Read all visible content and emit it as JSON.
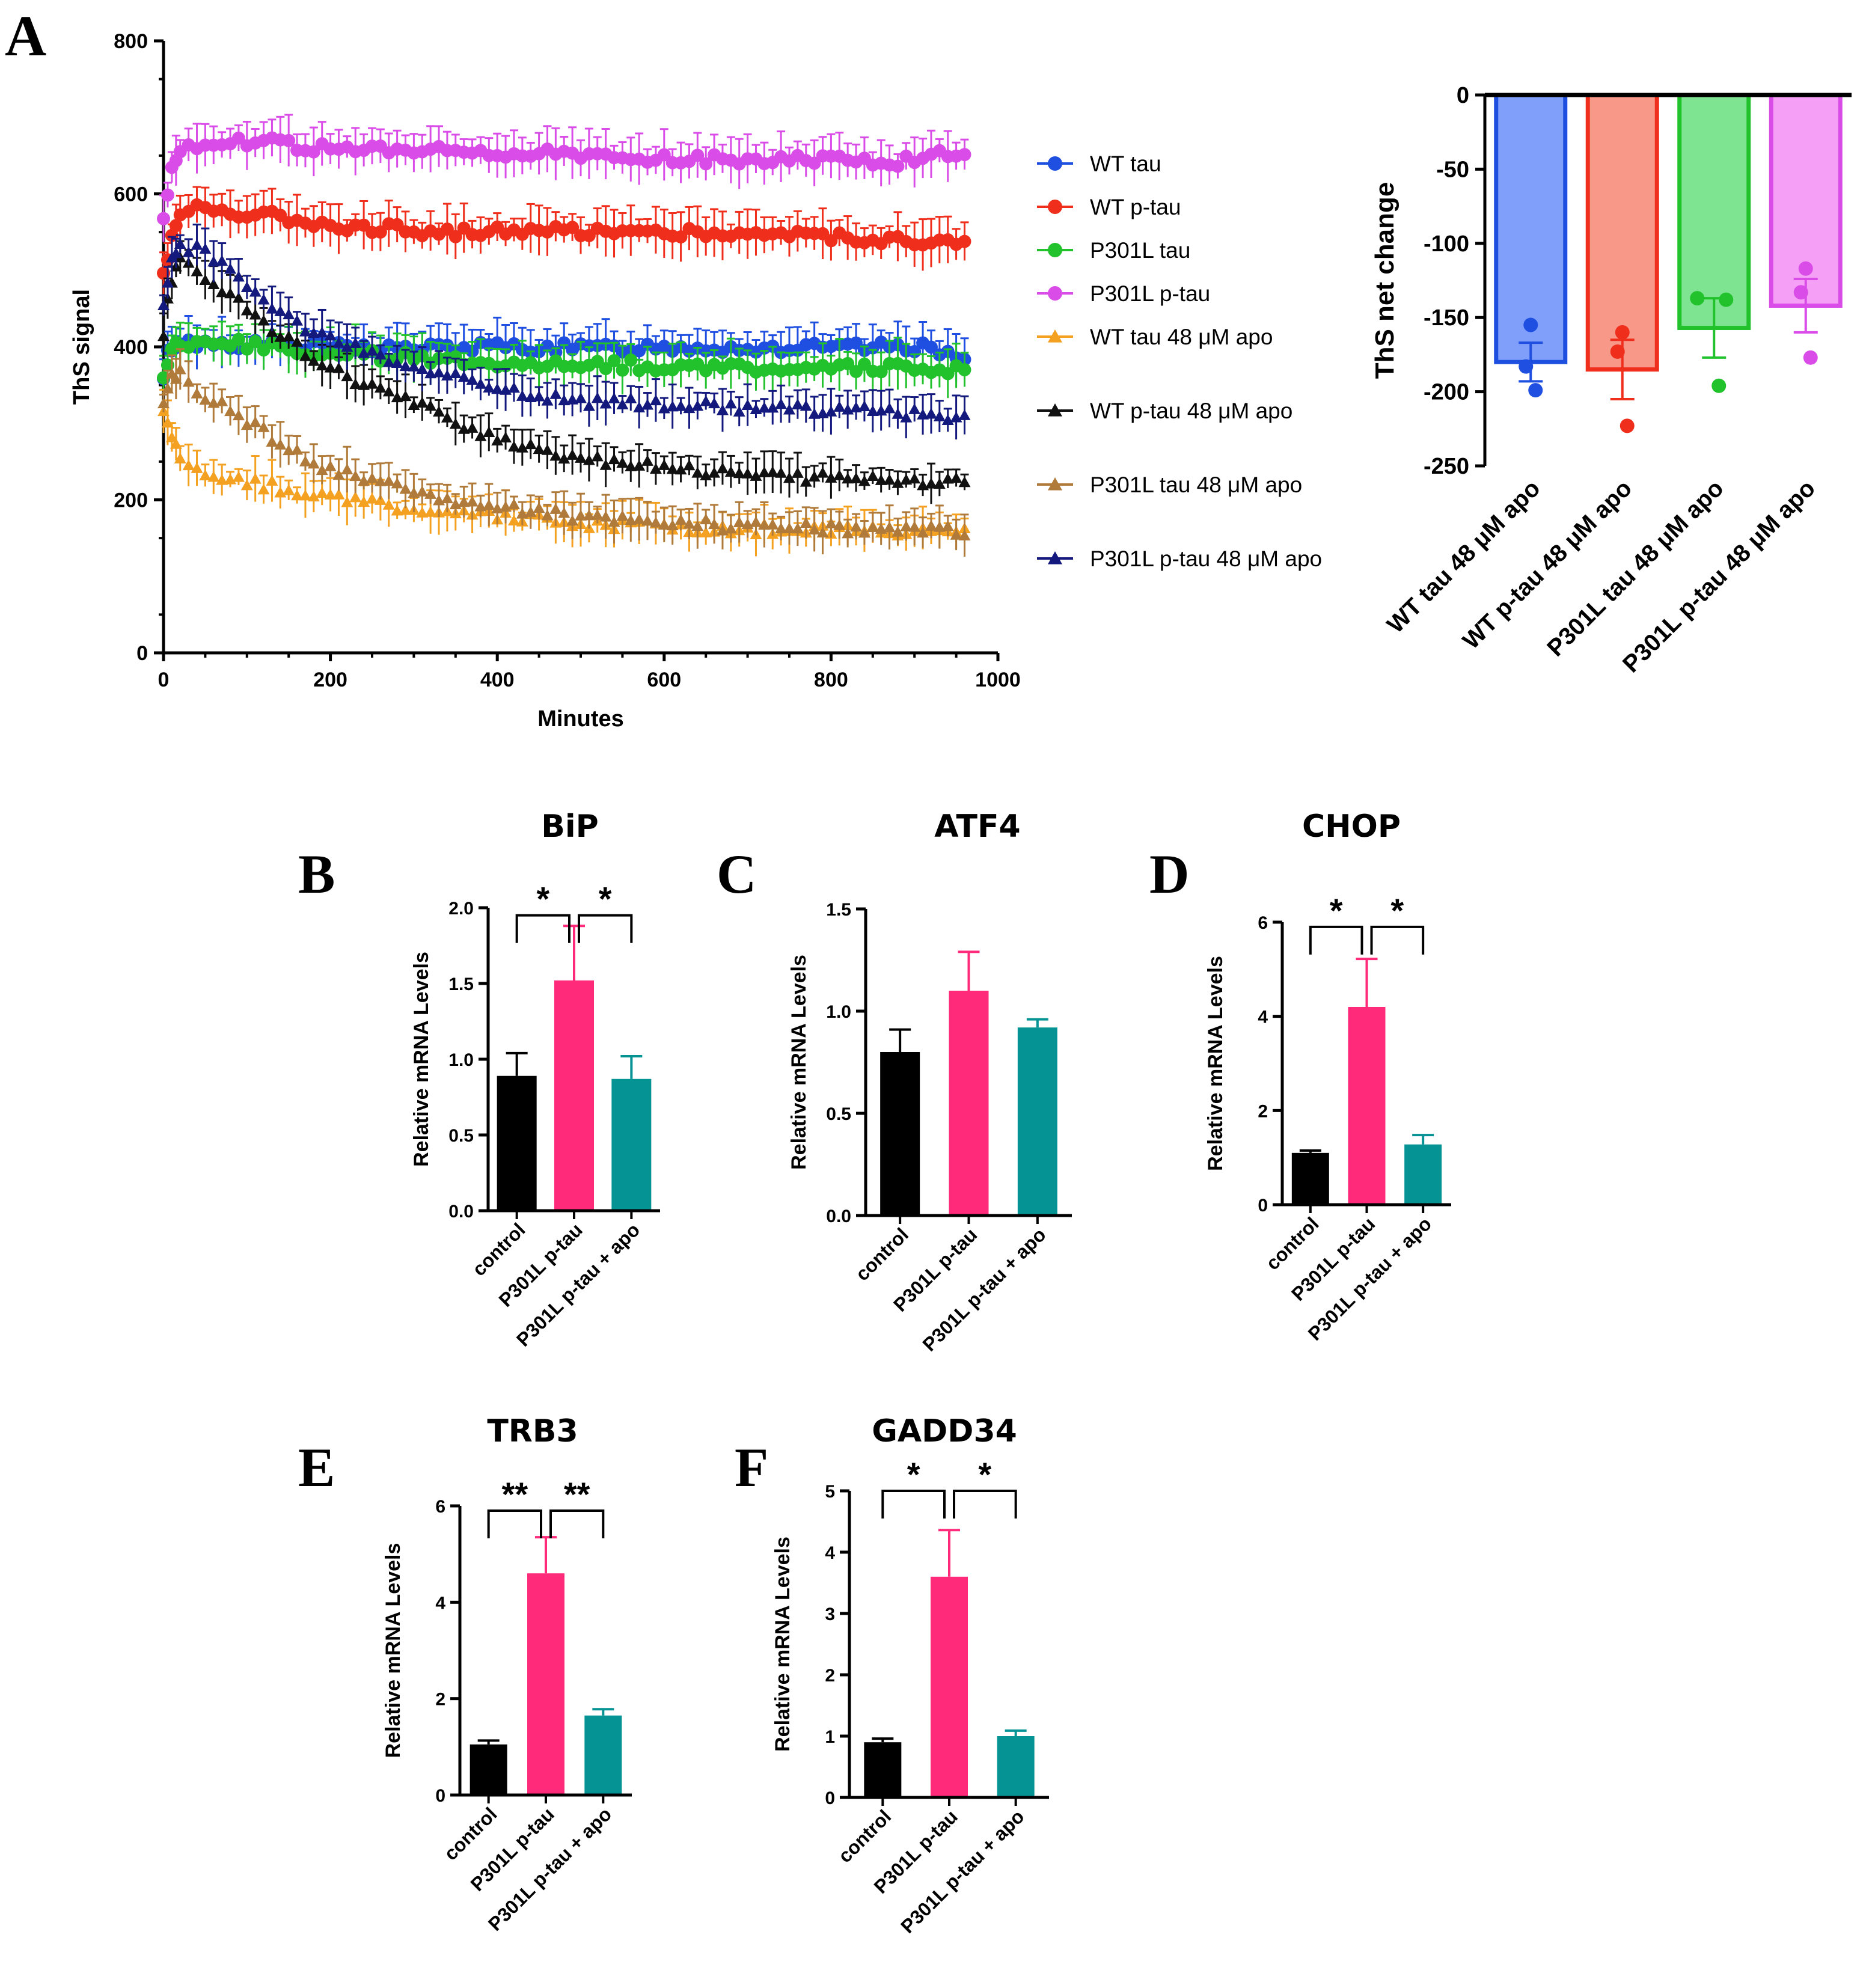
{
  "panels": [
    {
      "id": "A-time",
      "label": "A",
      "chart_data": {
        "type": "line",
        "title": "",
        "xlabel": "Minutes",
        "ylabel": "ThS signal",
        "xlim": [
          0,
          1000
        ],
        "ylim": [
          0,
          800
        ],
        "xticks": [
          0,
          200,
          400,
          600,
          800,
          1000
        ],
        "yticks": [
          0,
          200,
          400,
          600,
          800
        ],
        "legend_position": "right",
        "series": [
          {
            "name": "WT tau",
            "color": "#1f4fe0",
            "marker": "circle",
            "points": [
              [
                0,
                355
              ],
              [
                5,
                390
              ],
              [
                10,
                400
              ],
              [
                20,
                405
              ],
              [
                40,
                405
              ],
              [
                80,
                404
              ],
              [
                120,
                402
              ],
              [
                160,
                400
              ],
              [
                200,
                400
              ],
              [
                300,
                398
              ],
              [
                400,
                400
              ],
              [
                500,
                398
              ],
              [
                600,
                400
              ],
              [
                700,
                398
              ],
              [
                800,
                398
              ],
              [
                900,
                400
              ],
              [
                960,
                390
              ]
            ]
          },
          {
            "name": "WT p-tau",
            "color": "#ef2e1c",
            "marker": "circle",
            "points": [
              [
                0,
                495
              ],
              [
                5,
                520
              ],
              [
                10,
                540
              ],
              [
                20,
                575
              ],
              [
                40,
                582
              ],
              [
                80,
                578
              ],
              [
                120,
                572
              ],
              [
                160,
                568
              ],
              [
                200,
                560
              ],
              [
                300,
                552
              ],
              [
                400,
                550
              ],
              [
                500,
                552
              ],
              [
                600,
                550
              ],
              [
                700,
                548
              ],
              [
                800,
                545
              ],
              [
                900,
                538
              ],
              [
                960,
                535
              ]
            ]
          },
          {
            "name": "P301L tau",
            "color": "#21c22c",
            "marker": "circle",
            "points": [
              [
                0,
                360
              ],
              [
                5,
                380
              ],
              [
                10,
                395
              ],
              [
                20,
                405
              ],
              [
                40,
                408
              ],
              [
                80,
                405
              ],
              [
                120,
                400
              ],
              [
                160,
                395
              ],
              [
                200,
                392
              ],
              [
                300,
                385
              ],
              [
                400,
                380
              ],
              [
                500,
                378
              ],
              [
                600,
                375
              ],
              [
                700,
                373
              ],
              [
                800,
                372
              ],
              [
                900,
                372
              ],
              [
                960,
                372
              ]
            ]
          },
          {
            "name": "P301L p-tau",
            "color": "#d94ce8",
            "marker": "circle",
            "points": [
              [
                0,
                570
              ],
              [
                5,
                600
              ],
              [
                10,
                635
              ],
              [
                20,
                660
              ],
              [
                40,
                665
              ],
              [
                80,
                668
              ],
              [
                120,
                668
              ],
              [
                160,
                662
              ],
              [
                200,
                658
              ],
              [
                300,
                655
              ],
              [
                400,
                655
              ],
              [
                500,
                650
              ],
              [
                600,
                645
              ],
              [
                700,
                645
              ],
              [
                800,
                645
              ],
              [
                900,
                642
              ],
              [
                960,
                658
              ]
            ]
          },
          {
            "name": "WT tau 48 μM apo",
            "color": "#f4a020",
            "marker": "triangle",
            "points": [
              [
                0,
                320
              ],
              [
                5,
                300
              ],
              [
                10,
                285
              ],
              [
                20,
                260
              ],
              [
                40,
                238
              ],
              [
                80,
                228
              ],
              [
                120,
                220
              ],
              [
                160,
                212
              ],
              [
                200,
                205
              ],
              [
                300,
                188
              ],
              [
                400,
                178
              ],
              [
                500,
                170
              ],
              [
                600,
                165
              ],
              [
                700,
                162
              ],
              [
                800,
                160
              ],
              [
                900,
                158
              ],
              [
                960,
                160
              ]
            ]
          },
          {
            "name": "WT p-tau 48 μM apo",
            "color": "#111111",
            "marker": "triangle",
            "points": [
              [
                0,
                420
              ],
              [
                5,
                460
              ],
              [
                10,
                490
              ],
              [
                20,
                510
              ],
              [
                40,
                500
              ],
              [
                80,
                470
              ],
              [
                120,
                435
              ],
              [
                160,
                400
              ],
              [
                200,
                370
              ],
              [
                300,
                325
              ],
              [
                400,
                280
              ],
              [
                500,
                255
              ],
              [
                600,
                245
              ],
              [
                700,
                232
              ],
              [
                800,
                228
              ],
              [
                900,
                225
              ],
              [
                960,
                225
              ]
            ]
          },
          {
            "name": "P301L tau 48 μM apo",
            "color": "#b07b3a",
            "marker": "triangle",
            "points": [
              [
                0,
                320
              ],
              [
                5,
                340
              ],
              [
                10,
                360
              ],
              [
                20,
                365
              ],
              [
                40,
                345
              ],
              [
                80,
                315
              ],
              [
                120,
                290
              ],
              [
                160,
                260
              ],
              [
                200,
                240
              ],
              [
                300,
                210
              ],
              [
                400,
                190
              ],
              [
                500,
                178
              ],
              [
                600,
                170
              ],
              [
                700,
                165
              ],
              [
                800,
                163
              ],
              [
                900,
                160
              ],
              [
                960,
                160
              ]
            ]
          },
          {
            "name": "P301L p-tau 48 μM apo",
            "color": "#14197e",
            "marker": "triangle",
            "points": [
              [
                0,
                450
              ],
              [
                5,
                490
              ],
              [
                10,
                515
              ],
              [
                20,
                530
              ],
              [
                40,
                530
              ],
              [
                80,
                500
              ],
              [
                120,
                465
              ],
              [
                160,
                430
              ],
              [
                200,
                410
              ],
              [
                300,
                375
              ],
              [
                400,
                345
              ],
              [
                500,
                330
              ],
              [
                600,
                325
              ],
              [
                700,
                320
              ],
              [
                800,
                318
              ],
              [
                900,
                312
              ],
              [
                960,
                308
              ]
            ]
          }
        ]
      }
    },
    {
      "id": "A-net",
      "label": "",
      "chart_data": {
        "type": "bar",
        "title": "",
        "xlabel": "",
        "ylabel": "ThS net change",
        "ylim": [
          -250,
          0
        ],
        "yticks": [
          0,
          -50,
          -100,
          -150,
          -200,
          -250
        ],
        "categories": [
          "WT tau 48 μM apo",
          "WT p-tau 48 μM apo",
          "P301L tau 48 μM apo",
          "P301L p-tau 48 μM apo"
        ],
        "values": [
          -180,
          -185,
          -157,
          -142
        ],
        "errors": [
          13,
          20,
          20,
          18
        ],
        "points": [
          [
            -155,
            -183,
            -199
          ],
          [
            -160,
            -173,
            -223
          ],
          [
            -137,
            -138,
            -196
          ],
          [
            -117,
            -133,
            -177
          ]
        ],
        "colors": [
          "#1f4fe0",
          "#ef2e1c",
          "#21c22c",
          "#d94ce8"
        ],
        "fills": [
          "#7f9ffa",
          "#f89888",
          "#7fe491",
          "#f59ff6"
        ]
      }
    },
    {
      "id": "B",
      "label": "B",
      "chart_data": {
        "type": "bar",
        "title": "BiP",
        "xlabel": "",
        "ylabel": "Relative mRNA Levels",
        "ylim": [
          0,
          2.0
        ],
        "yticks": [
          0.0,
          0.5,
          1.0,
          1.5,
          2.0
        ],
        "tick_decimals": 1,
        "categories": [
          "control",
          "P301L p-tau",
          "P301L p-tau + apo"
        ],
        "values": [
          0.89,
          1.52,
          0.87
        ],
        "errors": [
          0.15,
          0.36,
          0.15
        ],
        "colors": [
          "#000000",
          "#ff2a7a",
          "#069393"
        ],
        "significance": [
          {
            "from": 0,
            "to": 1,
            "text": "*"
          },
          {
            "from": 1,
            "to": 2,
            "text": "*"
          }
        ],
        "bracket_y": 1.95
      }
    },
    {
      "id": "C",
      "label": "C",
      "chart_data": {
        "type": "bar",
        "title": "ATF4",
        "xlabel": "",
        "ylabel": "Relative mRNA Levels",
        "ylim": [
          0,
          1.5
        ],
        "yticks": [
          0.0,
          0.5,
          1.0,
          1.5
        ],
        "tick_decimals": 1,
        "categories": [
          "control",
          "P301L p-tau",
          "P301L p-tau + apo"
        ],
        "values": [
          0.8,
          1.1,
          0.92
        ],
        "errors": [
          0.11,
          0.19,
          0.04
        ],
        "colors": [
          "#000000",
          "#ff2a7a",
          "#069393"
        ],
        "significance": []
      }
    },
    {
      "id": "D",
      "label": "D",
      "chart_data": {
        "type": "bar",
        "title": "CHOP",
        "xlabel": "",
        "ylabel": "Relative mRNA Levels",
        "ylim": [
          0,
          6
        ],
        "yticks": [
          0,
          2,
          4,
          6
        ],
        "tick_decimals": 0,
        "categories": [
          "control",
          "P301L p-tau",
          "P301L p-tau + apo"
        ],
        "values": [
          1.1,
          4.2,
          1.28
        ],
        "errors": [
          0.05,
          1.02,
          0.2
        ],
        "colors": [
          "#000000",
          "#ff2a7a",
          "#069393"
        ],
        "significance": [
          {
            "from": 0,
            "to": 1,
            "text": "*"
          },
          {
            "from": 1,
            "to": 2,
            "text": "*"
          }
        ],
        "bracket_y": 5.9
      }
    },
    {
      "id": "E",
      "label": "E",
      "chart_data": {
        "type": "bar",
        "title": "TRB3",
        "xlabel": "",
        "ylabel": "Relative mRNA Levels",
        "ylim": [
          0,
          6
        ],
        "yticks": [
          0,
          2,
          4,
          6
        ],
        "tick_decimals": 0,
        "categories": [
          "control",
          "P301L p-tau",
          "P301L p-tau + apo"
        ],
        "values": [
          1.05,
          4.6,
          1.65
        ],
        "errors": [
          0.08,
          0.75,
          0.13
        ],
        "colors": [
          "#000000",
          "#ff2a7a",
          "#069393"
        ],
        "significance": [
          {
            "from": 0,
            "to": 1,
            "text": "**"
          },
          {
            "from": 1,
            "to": 2,
            "text": "**"
          }
        ],
        "bracket_y": 5.9
      }
    },
    {
      "id": "F",
      "label": "F",
      "chart_data": {
        "type": "bar",
        "title": "GADD34",
        "xlabel": "",
        "ylabel": "Relative mRNA Levels",
        "ylim": [
          0,
          5
        ],
        "yticks": [
          0,
          1,
          2,
          3,
          4,
          5
        ],
        "tick_decimals": 0,
        "categories": [
          "control",
          "P301L p-tau",
          "P301L p-tau + apo"
        ],
        "values": [
          0.9,
          3.6,
          1.0
        ],
        "errors": [
          0.06,
          0.76,
          0.09
        ],
        "colors": [
          "#000000",
          "#ff2a7a",
          "#069393"
        ],
        "significance": [
          {
            "from": 0,
            "to": 1,
            "text": "*"
          },
          {
            "from": 1,
            "to": 2,
            "text": "*"
          }
        ],
        "bracket_y": 5.0
      }
    }
  ]
}
